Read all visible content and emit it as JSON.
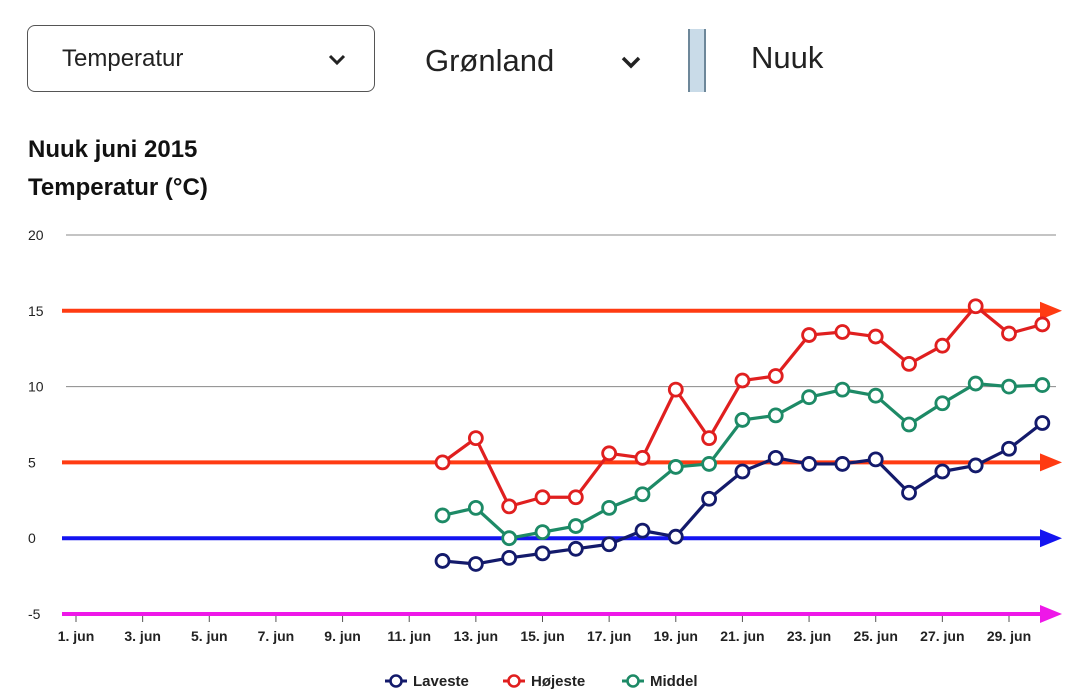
{
  "controls": {
    "variable_select": "Temperatur",
    "region_select": "Grønland",
    "city": "Nuuk"
  },
  "chart_data": {
    "type": "line",
    "title": "Nuuk juni 2015",
    "ylabel": "Temperatur (°C)",
    "xlabel": "",
    "ylim": [
      -5,
      20
    ],
    "yticks": [
      20,
      15,
      10,
      5,
      0,
      -5
    ],
    "x_tick_labels": [
      "1. jun",
      "3. jun",
      "5. jun",
      "7. jun",
      "9. jun",
      "11. jun",
      "13. jun",
      "15. jun",
      "17. jun",
      "19. jun",
      "21. jun",
      "23. jun",
      "25. jun",
      "27. jun",
      "29. jun"
    ],
    "x_tick_days": [
      1,
      3,
      5,
      7,
      9,
      11,
      13,
      15,
      17,
      19,
      21,
      23,
      25,
      27,
      29
    ],
    "x_days": [
      12,
      13,
      14,
      15,
      16,
      17,
      18,
      19,
      20,
      21,
      22,
      23,
      24,
      25,
      26,
      27,
      28,
      29,
      30
    ],
    "grid": true,
    "legend_position": "bottom",
    "series": [
      {
        "name": "Laveste",
        "color": "#131a6b",
        "values": [
          -1.5,
          -1.7,
          -1.3,
          -1.0,
          -0.7,
          -0.4,
          0.5,
          0.1,
          2.6,
          4.4,
          5.3,
          4.9,
          4.9,
          5.2,
          3.0,
          4.4,
          4.8,
          5.9,
          7.6
        ]
      },
      {
        "name": "Højeste",
        "color": "#e01f1f",
        "values": [
          5.0,
          6.6,
          2.1,
          2.7,
          2.7,
          5.6,
          5.3,
          9.8,
          6.6,
          10.4,
          10.7,
          13.4,
          13.6,
          13.3,
          11.5,
          12.7,
          15.3,
          13.5,
          14.1
        ]
      },
      {
        "name": "Middel",
        "color": "#1d8a66",
        "values": [
          1.5,
          2.0,
          0.0,
          0.4,
          0.8,
          2.0,
          2.9,
          4.7,
          4.9,
          7.8,
          8.1,
          9.3,
          9.8,
          9.4,
          7.5,
          8.9,
          10.2,
          10.0,
          10.1
        ]
      }
    ],
    "reference_lines": [
      {
        "value": 15,
        "color": "#ff3b12"
      },
      {
        "value": 5,
        "color": "#ff3b12"
      },
      {
        "value": 0,
        "color": "#1414f0"
      },
      {
        "value": -5,
        "color": "#ee18e8"
      }
    ]
  }
}
